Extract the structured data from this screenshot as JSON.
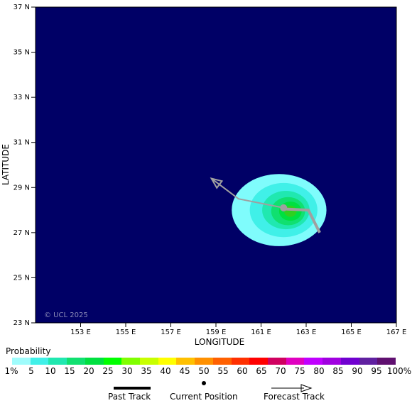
{
  "map": {
    "background_color": "#000066",
    "lat_range": [
      23,
      37
    ],
    "lon_range": [
      151,
      167
    ],
    "lat_ticks": [
      "23 N",
      "25 N",
      "27 N",
      "29 N",
      "31 N",
      "33 N",
      "35 N",
      "37 N"
    ],
    "lon_ticks": [
      "153 E",
      "155 E",
      "157 E",
      "159 E",
      "161 E",
      "163 E",
      "165 E",
      "167 E"
    ],
    "xlabel": "LONGITUDE",
    "ylabel": "LATITUDE",
    "watermark": "© UCL 2025"
  },
  "probability_field": {
    "contours": [
      {
        "level": "1%",
        "color": "#7ffcfc",
        "center": [
          161.8,
          28.0
        ],
        "radii": [
          4.2,
          3.2
        ]
      },
      {
        "level": "5%",
        "color": "#40f0e8",
        "center": [
          162.0,
          28.0
        ],
        "radii": [
          3.0,
          2.4
        ]
      },
      {
        "level": "10%",
        "color": "#20e8b0",
        "center": [
          162.1,
          28.0
        ],
        "radii": [
          2.1,
          1.7
        ]
      },
      {
        "level": "15%",
        "color": "#10e070",
        "center": [
          162.2,
          27.95
        ],
        "radii": [
          1.5,
          1.25
        ]
      },
      {
        "level": "20%",
        "color": "#00e040",
        "center": [
          162.3,
          27.95
        ],
        "radii": [
          1.0,
          0.85
        ]
      },
      {
        "level": "25%",
        "color": "#30d020",
        "center": [
          162.3,
          27.95
        ],
        "radii": [
          0.55,
          0.5
        ]
      }
    ]
  },
  "tracks": {
    "past_track": [
      [
        163.6,
        27.0
      ],
      [
        163.1,
        28.0
      ],
      [
        162.0,
        28.05
      ]
    ],
    "current_position": [
      162.0,
      28.1
    ],
    "forecast_track": [
      [
        162.0,
        28.1
      ],
      [
        160.0,
        28.5
      ],
      [
        158.8,
        29.4
      ]
    ],
    "track_color": "#a0a0a0"
  },
  "legend": {
    "title": "Probability",
    "scale_colors": [
      "#9ffcfc",
      "#40f0e8",
      "#20e8b0",
      "#10e070",
      "#00e040",
      "#00ff00",
      "#80ff00",
      "#c8ff00",
      "#ffff00",
      "#ffc000",
      "#ff9000",
      "#ff6000",
      "#ff3000",
      "#ff0000",
      "#d00060",
      "#e000c0",
      "#c000ff",
      "#a000e0",
      "#7000d0",
      "#6020a0",
      "#601070"
    ],
    "scale_labels": [
      "1%",
      "5",
      "10",
      "15",
      "20",
      "25",
      "30",
      "35",
      "40",
      "45",
      "50",
      "55",
      "60",
      "65",
      "70",
      "75",
      "80",
      "85",
      "90",
      "95",
      "100%"
    ],
    "past_track_label": "Past Track",
    "current_position_label": "Current Position",
    "forecast_track_label": "Forecast Track"
  }
}
